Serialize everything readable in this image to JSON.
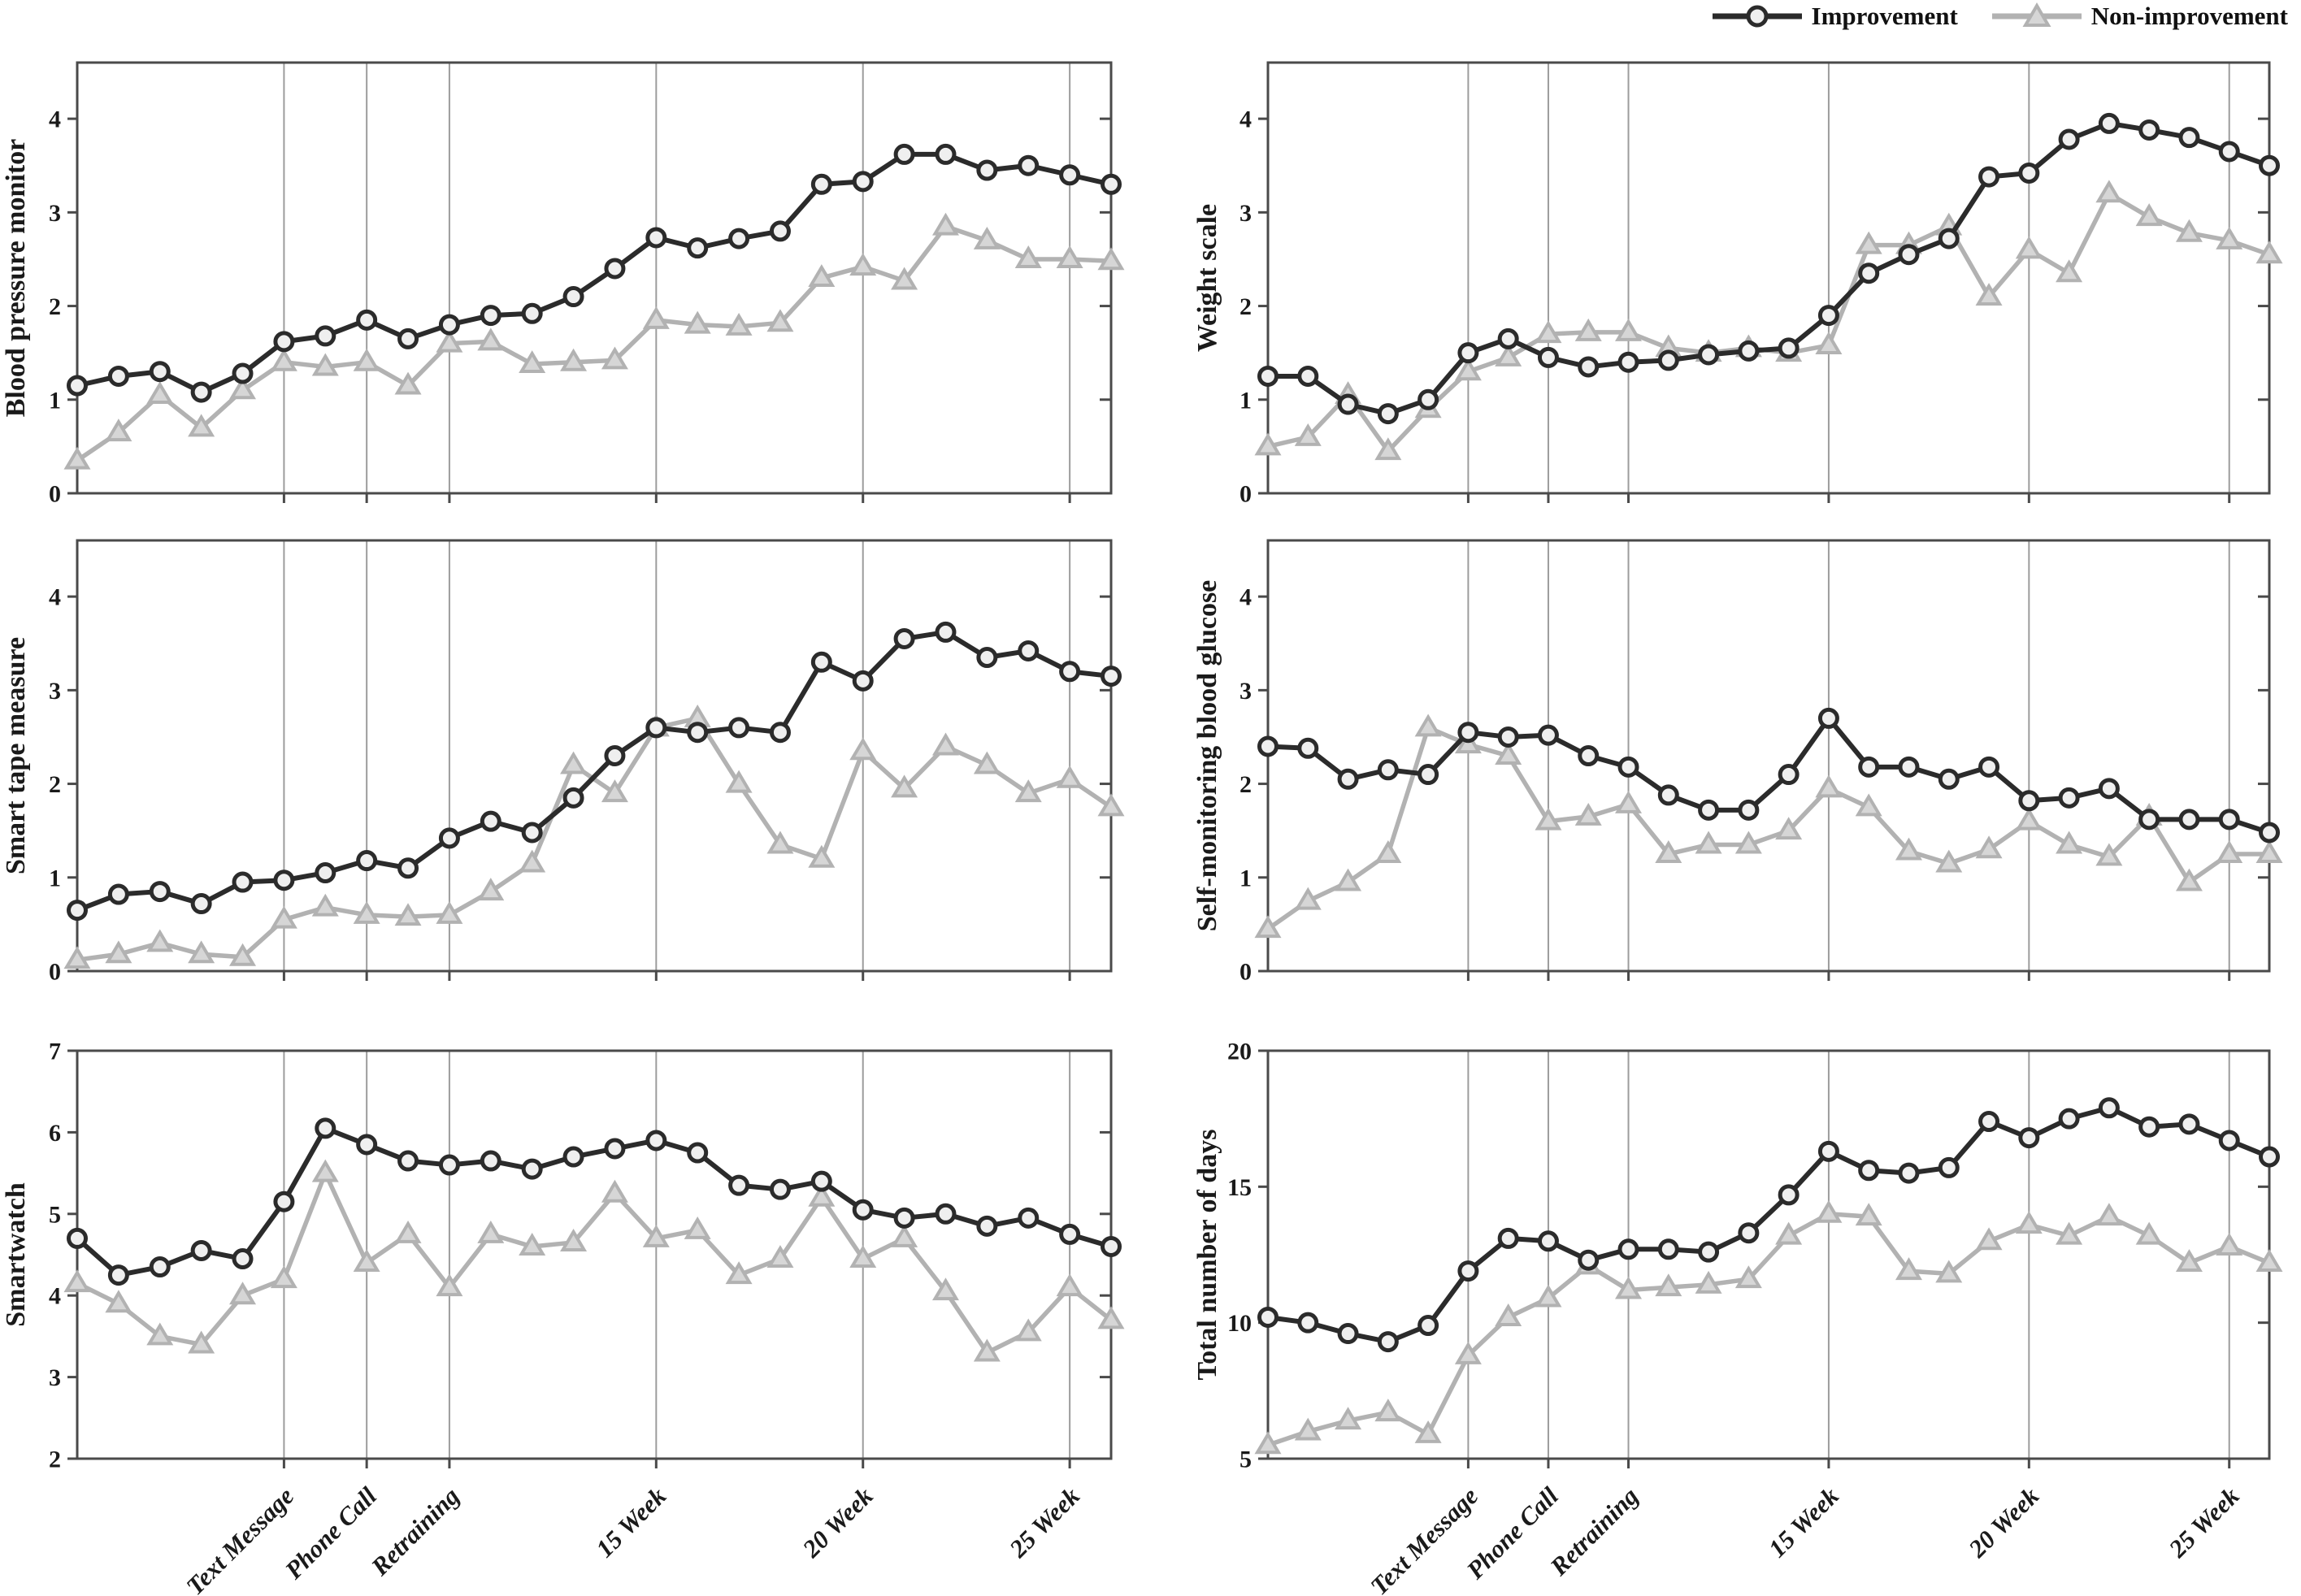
{
  "legend": {
    "items": [
      {
        "key": "improvement",
        "label": "Improvement",
        "marker": "circle"
      },
      {
        "key": "non_improvement",
        "label": "Non-improvement",
        "marker": "triangle"
      }
    ]
  },
  "colors": {
    "improvement": "#2b2b2b",
    "improvement_fill": "#efefef",
    "non_improvement": "#b2b2b2",
    "non_improvement_fill": "#d6d6d6",
    "gridline": "#9c9c9c",
    "spine": "#4a4a4a",
    "text": "#1a1a1a"
  },
  "x_axis": {
    "unit": "week",
    "n_points": 26,
    "gridlines": [
      {
        "week": 6,
        "label": "Text Message"
      },
      {
        "week": 8,
        "label": "Phone Call"
      },
      {
        "week": 10,
        "label": "Retraining"
      },
      {
        "week": 15,
        "label": "15 Week"
      },
      {
        "week": 20,
        "label": "20 Week"
      },
      {
        "week": 25,
        "label": "25 Week"
      }
    ]
  },
  "chart_data": [
    {
      "type": "line",
      "ylabel": "Blood pressure monitor",
      "ylim": [
        0,
        4.6
      ],
      "yticks": [
        0,
        1,
        2,
        3,
        4
      ],
      "series": [
        {
          "key": "improvement",
          "name": "Improvement",
          "values": [
            1.15,
            1.25,
            1.3,
            1.08,
            1.28,
            1.62,
            1.68,
            1.85,
            1.65,
            1.8,
            1.9,
            1.92,
            2.1,
            2.4,
            2.73,
            2.62,
            2.72,
            2.8,
            3.3,
            3.33,
            3.62,
            3.62,
            3.45,
            3.5,
            3.4,
            3.3
          ]
        },
        {
          "key": "non_improvement",
          "name": "Non-improvement",
          "values": [
            0.35,
            0.65,
            1.05,
            0.7,
            1.1,
            1.4,
            1.35,
            1.4,
            1.15,
            1.6,
            1.62,
            1.38,
            1.4,
            1.42,
            1.85,
            1.8,
            1.78,
            1.82,
            2.3,
            2.42,
            2.27,
            2.85,
            2.7,
            2.5,
            2.5,
            2.48
          ]
        }
      ]
    },
    {
      "type": "line",
      "ylabel": "Weight scale",
      "ylim": [
        0,
        4.6
      ],
      "yticks": [
        0,
        1,
        2,
        3,
        4
      ],
      "series": [
        {
          "key": "improvement",
          "name": "Improvement",
          "values": [
            1.25,
            1.25,
            0.95,
            0.85,
            1.0,
            1.5,
            1.65,
            1.45,
            1.35,
            1.4,
            1.42,
            1.48,
            1.52,
            1.55,
            1.9,
            2.35,
            2.55,
            2.72,
            3.38,
            3.42,
            3.78,
            3.95,
            3.88,
            3.8,
            3.65,
            3.5
          ]
        },
        {
          "key": "non_improvement",
          "name": "Non-improvement",
          "values": [
            0.5,
            0.6,
            1.05,
            0.45,
            0.9,
            1.3,
            1.45,
            1.7,
            1.72,
            1.72,
            1.55,
            1.5,
            1.55,
            1.5,
            1.58,
            2.65,
            2.65,
            2.85,
            2.1,
            2.6,
            2.35,
            3.2,
            2.95,
            2.78,
            2.7,
            2.55
          ]
        }
      ]
    },
    {
      "type": "line",
      "ylabel": "Smart tape measure",
      "ylim": [
        0,
        4.6
      ],
      "yticks": [
        0,
        1,
        2,
        3,
        4
      ],
      "series": [
        {
          "key": "improvement",
          "name": "Improvement",
          "values": [
            0.65,
            0.82,
            0.85,
            0.72,
            0.95,
            0.97,
            1.05,
            1.18,
            1.1,
            1.42,
            1.6,
            1.48,
            1.85,
            2.3,
            2.6,
            2.55,
            2.6,
            2.55,
            3.3,
            3.1,
            3.55,
            3.62,
            3.35,
            3.42,
            3.2,
            3.15
          ]
        },
        {
          "key": "non_improvement",
          "name": "Non-improvement",
          "values": [
            0.12,
            0.18,
            0.3,
            0.18,
            0.15,
            0.55,
            0.68,
            0.6,
            0.58,
            0.6,
            0.85,
            1.15,
            2.2,
            1.9,
            2.6,
            2.7,
            2.0,
            1.35,
            1.2,
            2.35,
            1.95,
            2.4,
            2.2,
            1.9,
            2.05,
            1.75
          ]
        }
      ]
    },
    {
      "type": "line",
      "ylabel": "Self-monitoring blood glucose",
      "ylim": [
        0,
        4.6
      ],
      "yticks": [
        0,
        1,
        2,
        3,
        4
      ],
      "series": [
        {
          "key": "improvement",
          "name": "Improvement",
          "values": [
            2.4,
            2.38,
            2.05,
            2.15,
            2.1,
            2.55,
            2.5,
            2.52,
            2.3,
            2.18,
            1.88,
            1.72,
            1.72,
            2.1,
            2.7,
            2.18,
            2.18,
            2.05,
            2.18,
            1.82,
            1.85,
            1.95,
            1.62,
            1.62,
            1.62,
            1.48
          ]
        },
        {
          "key": "non_improvement",
          "name": "Non-improvement",
          "values": [
            0.45,
            0.75,
            0.95,
            1.25,
            2.6,
            2.42,
            2.3,
            1.6,
            1.65,
            1.78,
            1.25,
            1.35,
            1.35,
            1.5,
            1.95,
            1.75,
            1.28,
            1.15,
            1.3,
            1.6,
            1.35,
            1.22,
            1.65,
            0.95,
            1.25,
            1.25
          ]
        }
      ]
    },
    {
      "type": "line",
      "ylabel": "Smartwatch",
      "ylim": [
        2,
        7
      ],
      "yticks": [
        2,
        3,
        4,
        5,
        6,
        7
      ],
      "series": [
        {
          "key": "improvement",
          "name": "Improvement",
          "values": [
            4.7,
            4.25,
            4.35,
            4.55,
            4.45,
            5.15,
            6.05,
            5.85,
            5.65,
            5.6,
            5.65,
            5.55,
            5.7,
            5.8,
            5.9,
            5.75,
            5.35,
            5.3,
            5.4,
            5.05,
            4.95,
            5.0,
            4.85,
            4.95,
            4.75,
            4.6
          ]
        },
        {
          "key": "non_improvement",
          "name": "Non-improvement",
          "values": [
            4.15,
            3.9,
            3.5,
            3.4,
            4.0,
            4.2,
            5.5,
            4.4,
            4.75,
            4.1,
            4.75,
            4.6,
            4.65,
            5.25,
            4.7,
            4.8,
            4.25,
            4.45,
            5.2,
            4.45,
            4.7,
            4.05,
            3.3,
            3.55,
            4.1,
            3.7
          ]
        }
      ]
    },
    {
      "type": "line",
      "ylabel": "Total number of days",
      "ylim": [
        5,
        20
      ],
      "yticks": [
        5,
        10,
        15,
        20
      ],
      "series": [
        {
          "key": "improvement",
          "name": "Improvement",
          "values": [
            10.2,
            10.0,
            9.6,
            9.3,
            9.9,
            11.9,
            13.1,
            13.0,
            12.3,
            12.7,
            12.7,
            12.6,
            13.3,
            14.7,
            16.3,
            15.6,
            15.5,
            15.7,
            17.4,
            16.8,
            17.5,
            17.9,
            17.2,
            17.3,
            16.7,
            16.1
          ]
        },
        {
          "key": "non_improvement",
          "name": "Non-improvement",
          "values": [
            5.5,
            6.0,
            6.4,
            6.7,
            5.9,
            8.8,
            10.2,
            10.9,
            12.1,
            11.2,
            11.3,
            11.4,
            11.6,
            13.2,
            14.0,
            13.9,
            11.9,
            11.8,
            13.0,
            13.6,
            13.2,
            13.9,
            13.2,
            12.2,
            12.8,
            12.2
          ]
        }
      ]
    }
  ]
}
